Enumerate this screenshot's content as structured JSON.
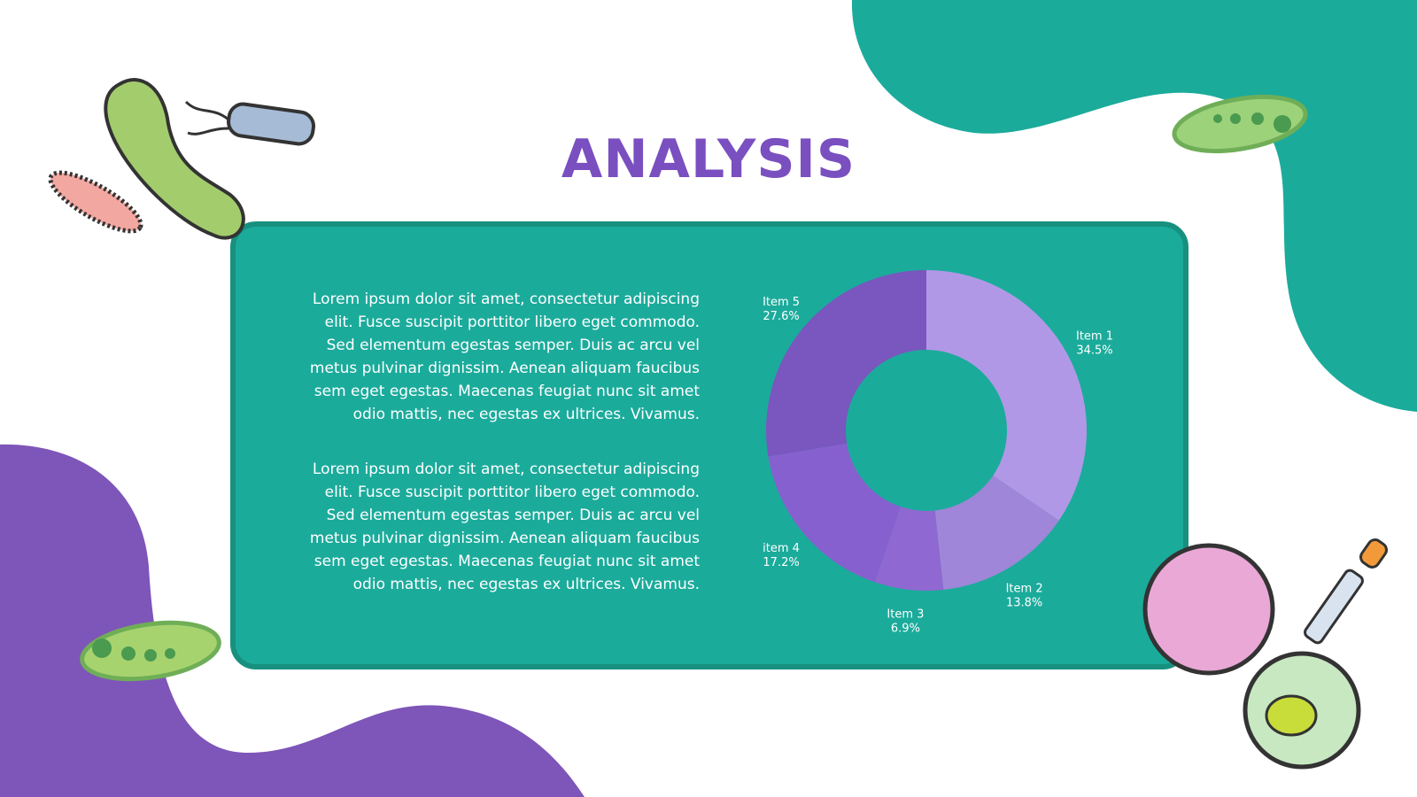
{
  "title": "ANALYSIS",
  "paragraphs": [
    "Lorem ipsum dolor sit amet, consectetur adipiscing elit. Fusce suscipit porttitor libero eget commodo. Sed elementum egestas semper. Duis ac arcu vel metus pulvinar dignissim. Aenean aliquam faucibus sem eget egestas. Maecenas feugiat nunc sit amet odio mattis, nec egestas ex ultrices. Vivamus.",
    "Lorem ipsum dolor sit amet, consectetur adipiscing elit. Fusce suscipit porttitor libero eget commodo. Sed elementum egestas semper. Duis ac arcu vel metus pulvinar dignissim. Aenean aliquam faucibus sem eget egestas. Maecenas feugiat nunc sit amet odio mattis, nec egestas ex ultrices. Vivamus."
  ],
  "chart_data": {
    "type": "donut",
    "categories": [
      "Item 1",
      "Item 2",
      "Item 3",
      "item 4",
      "Item 5"
    ],
    "values": [
      34.5,
      13.8,
      6.9,
      17.2,
      27.6
    ],
    "value_labels": [
      "34.5%",
      "13.8%",
      "6.9%",
      "17.2%",
      "27.6%"
    ],
    "colors": [
      "#b198e6",
      "#9f86d8",
      "#9068d2",
      "#8760cf",
      "#7a56bf"
    ]
  }
}
